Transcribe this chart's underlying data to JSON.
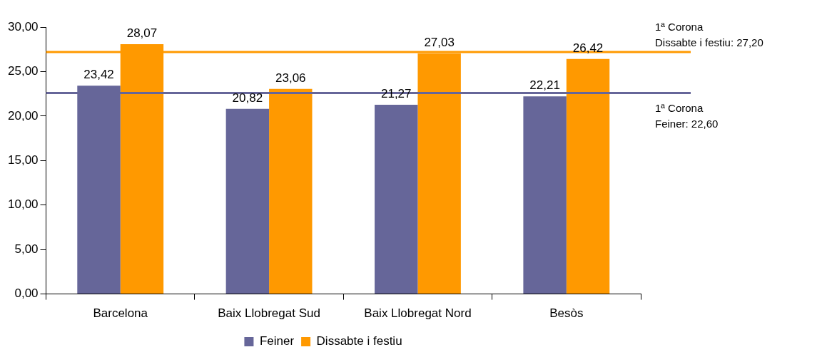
{
  "chart_data": {
    "type": "bar",
    "categories": [
      "Barcelona",
      "Baix Llobregat Sud",
      "Baix Llobregat Nord",
      "Besòs"
    ],
    "series": [
      {
        "name": "Feiner",
        "color": "#666699",
        "values": [
          23.42,
          20.82,
          21.27,
          22.21
        ],
        "value_labels": [
          "23,42",
          "20,82",
          "21,27",
          "22,21"
        ]
      },
      {
        "name": "Dissabte i festiu",
        "color": "#ff9900",
        "values": [
          28.07,
          23.06,
          27.03,
          26.42
        ],
        "value_labels": [
          "28,07",
          "23,06",
          "27,03",
          "26,42"
        ]
      }
    ],
    "ylim": [
      0,
      30
    ],
    "yticks": [
      {
        "value": 0,
        "label": "0,00"
      },
      {
        "value": 5,
        "label": "5,00"
      },
      {
        "value": 10,
        "label": "10,00"
      },
      {
        "value": 15,
        "label": "15,00"
      },
      {
        "value": 20,
        "label": "20,00"
      },
      {
        "value": 25,
        "label": "25,00"
      },
      {
        "value": 30,
        "label": "30,00"
      }
    ],
    "ref_lines": [
      {
        "axis": "y",
        "value": 27.2,
        "label": "1ª Corona\nDissabte i festiu: 27,20",
        "color": "#ff9900"
      },
      {
        "axis": "y",
        "value": 22.6,
        "label": "1ª Corona\nFeiner: 22,60",
        "color": "#666699"
      }
    ],
    "grid": false,
    "legend": "bottom"
  }
}
